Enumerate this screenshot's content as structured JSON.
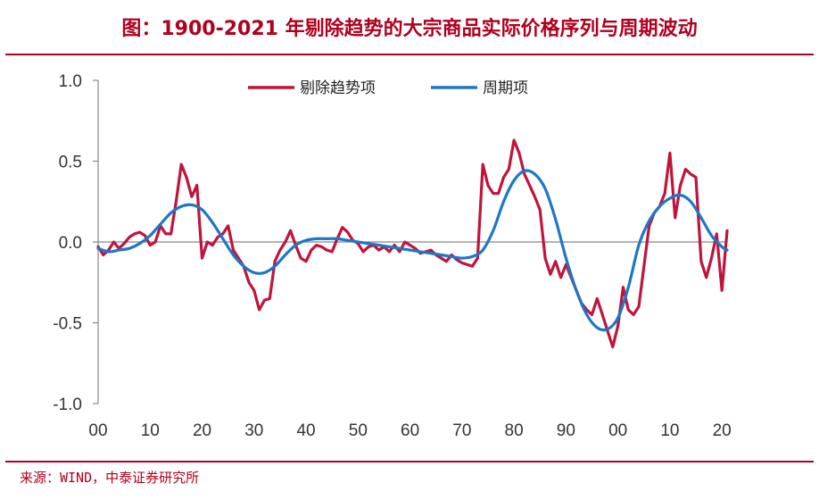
{
  "title": "图：1900-2021 年剔除趋势的大宗商品实际价格序列与周期波动",
  "source": "来源：WIND，中泰证券研究所",
  "colors": {
    "accent": "#b0001e",
    "series_detrended": "#c0143c",
    "series_cycle": "#1f77c4"
  },
  "chart_data": {
    "type": "line",
    "title": "1900-2021 年剔除趋势的大宗商品实际价格序列与周期波动",
    "xlabel": "",
    "ylabel": "",
    "xlim": [
      1900,
      2021
    ],
    "ylim": [
      -1.0,
      1.0
    ],
    "grid": false,
    "legend_position": "top-center",
    "x_ticks": [
      1900,
      1910,
      1920,
      1930,
      1940,
      1950,
      1960,
      1970,
      1980,
      1990,
      2000,
      2010,
      2020
    ],
    "x_tick_labels": [
      "00",
      "10",
      "20",
      "30",
      "40",
      "50",
      "60",
      "70",
      "80",
      "90",
      "00",
      "10",
      "20"
    ],
    "y_ticks": [
      1.0,
      0.5,
      0.0,
      -0.5,
      -1.0
    ],
    "y_tick_labels": [
      "1.0",
      "0.5",
      "0.0",
      "-0.5",
      "-1.0"
    ],
    "series": [
      {
        "name": "剔除趋势项",
        "color": "#c0143c",
        "x": [
          1900,
          1901,
          1902,
          1903,
          1904,
          1905,
          1906,
          1907,
          1908,
          1909,
          1910,
          1911,
          1912,
          1913,
          1914,
          1915,
          1916,
          1917,
          1918,
          1919,
          1920,
          1921,
          1922,
          1923,
          1924,
          1925,
          1926,
          1927,
          1928,
          1929,
          1930,
          1931,
          1932,
          1933,
          1934,
          1935,
          1936,
          1937,
          1938,
          1939,
          1940,
          1941,
          1942,
          1943,
          1944,
          1945,
          1946,
          1947,
          1948,
          1949,
          1950,
          1951,
          1952,
          1953,
          1954,
          1955,
          1956,
          1957,
          1958,
          1959,
          1960,
          1961,
          1962,
          1963,
          1964,
          1965,
          1966,
          1967,
          1968,
          1969,
          1970,
          1971,
          1972,
          1973,
          1974,
          1975,
          1976,
          1977,
          1978,
          1979,
          1980,
          1981,
          1982,
          1983,
          1984,
          1985,
          1986,
          1987,
          1988,
          1989,
          1990,
          1991,
          1992,
          1993,
          1994,
          1995,
          1996,
          1997,
          1998,
          1999,
          2000,
          2001,
          2002,
          2003,
          2004,
          2005,
          2006,
          2007,
          2008,
          2009,
          2010,
          2011,
          2012,
          2013,
          2014,
          2015,
          2016,
          2017,
          2018,
          2019,
          2020,
          2021
        ],
        "y": [
          -0.03,
          -0.08,
          -0.05,
          0.0,
          -0.04,
          -0.01,
          0.03,
          0.05,
          0.06,
          0.04,
          -0.02,
          0.0,
          0.1,
          0.05,
          0.05,
          0.25,
          0.48,
          0.4,
          0.28,
          0.35,
          -0.1,
          0.0,
          -0.02,
          0.03,
          0.05,
          0.1,
          -0.05,
          -0.1,
          -0.15,
          -0.25,
          -0.3,
          -0.42,
          -0.36,
          -0.35,
          -0.12,
          -0.05,
          0.0,
          0.07,
          -0.02,
          -0.1,
          -0.12,
          -0.05,
          -0.02,
          -0.03,
          -0.05,
          -0.06,
          0.02,
          0.09,
          0.06,
          0.01,
          -0.01,
          -0.06,
          -0.03,
          -0.02,
          -0.05,
          -0.03,
          -0.06,
          -0.02,
          -0.06,
          0.0,
          -0.02,
          -0.04,
          -0.07,
          -0.06,
          -0.05,
          -0.08,
          -0.1,
          -0.12,
          -0.08,
          -0.11,
          -0.13,
          -0.14,
          -0.15,
          -0.1,
          0.48,
          0.35,
          0.3,
          0.3,
          0.4,
          0.45,
          0.63,
          0.55,
          0.42,
          0.35,
          0.28,
          0.2,
          -0.1,
          -0.2,
          -0.12,
          -0.22,
          -0.14,
          -0.22,
          -0.3,
          -0.38,
          -0.42,
          -0.45,
          -0.35,
          -0.45,
          -0.55,
          -0.65,
          -0.52,
          -0.28,
          -0.42,
          -0.45,
          -0.4,
          -0.15,
          0.1,
          0.18,
          0.22,
          0.3,
          0.55,
          0.15,
          0.35,
          0.45,
          0.42,
          0.4,
          -0.12,
          -0.22,
          -0.1,
          0.05,
          -0.3,
          0.07
        ]
      },
      {
        "name": "周期项",
        "color": "#1f77c4",
        "x": [
          1900,
          1902,
          1904,
          1906,
          1908,
          1910,
          1912,
          1914,
          1916,
          1918,
          1920,
          1922,
          1924,
          1926,
          1928,
          1930,
          1932,
          1934,
          1936,
          1938,
          1940,
          1942,
          1944,
          1946,
          1948,
          1950,
          1952,
          1954,
          1956,
          1958,
          1960,
          1962,
          1964,
          1966,
          1968,
          1970,
          1972,
          1974,
          1976,
          1978,
          1980,
          1982,
          1984,
          1986,
          1988,
          1990,
          1992,
          1994,
          1996,
          1998,
          2000,
          2002,
          2004,
          2006,
          2008,
          2010,
          2012,
          2014,
          2016,
          2018,
          2020,
          2021
        ],
        "y": [
          -0.04,
          -0.06,
          -0.05,
          -0.04,
          -0.01,
          0.04,
          0.11,
          0.18,
          0.22,
          0.23,
          0.2,
          0.12,
          0.02,
          -0.08,
          -0.15,
          -0.19,
          -0.19,
          -0.15,
          -0.08,
          -0.02,
          0.01,
          0.02,
          0.02,
          0.02,
          0.01,
          0.0,
          -0.01,
          -0.02,
          -0.03,
          -0.04,
          -0.05,
          -0.06,
          -0.07,
          -0.08,
          -0.09,
          -0.1,
          -0.09,
          -0.05,
          0.07,
          0.25,
          0.38,
          0.44,
          0.42,
          0.33,
          0.14,
          -0.1,
          -0.3,
          -0.45,
          -0.53,
          -0.54,
          -0.47,
          -0.28,
          -0.02,
          0.13,
          0.22,
          0.27,
          0.29,
          0.25,
          0.15,
          0.04,
          -0.03,
          -0.05
        ]
      }
    ]
  }
}
